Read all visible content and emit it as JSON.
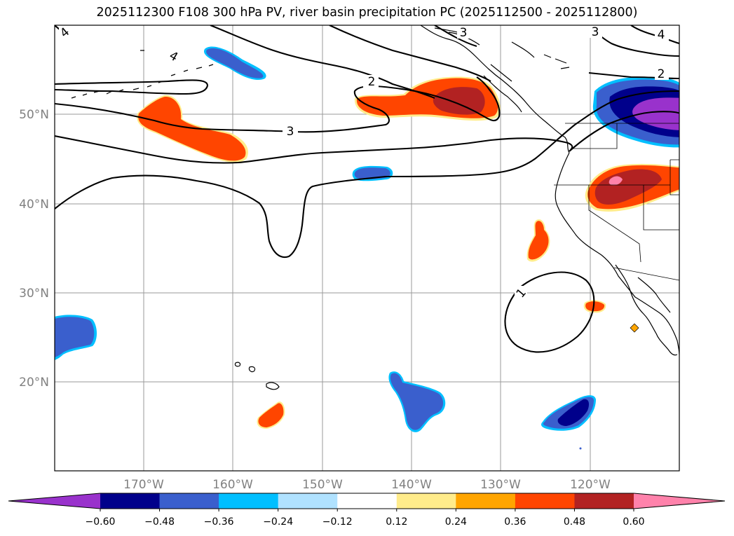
{
  "title": "2025112300 F108 300 hPa PV, river basin precipitation PC (2025112500 - 2025112800)",
  "map": {
    "projection": "PlateCarree",
    "lon_range": [
      -180,
      -110
    ],
    "lat_range": [
      10,
      60
    ],
    "gridlines": true,
    "lon_ticks": [
      {
        "lon": -170,
        "label": "170°W"
      },
      {
        "lon": -160,
        "label": "160°W"
      },
      {
        "lon": -150,
        "label": "150°W"
      },
      {
        "lon": -140,
        "label": "140°W"
      },
      {
        "lon": -130,
        "label": "130°W"
      },
      {
        "lon": -120,
        "label": "120°W"
      }
    ],
    "lat_ticks": [
      {
        "lat": 20,
        "label": "20°N"
      },
      {
        "lat": 30,
        "label": "30°N"
      },
      {
        "lat": 40,
        "label": "40°N"
      },
      {
        "lat": 50,
        "label": "50°N"
      }
    ],
    "pv_contour_labels": [
      "1",
      "2",
      "3",
      "4"
    ]
  },
  "colorbar": {
    "levels": [
      "−0.60",
      "−0.48",
      "−0.36",
      "−0.24",
      "−0.12",
      "0.12",
      "0.24",
      "0.36",
      "0.48",
      "0.60"
    ],
    "colors": [
      "#9932cc",
      "#00008b",
      "#3a5fcd",
      "#00bfff",
      "#b0e2ff",
      "#ffffff",
      "#ffec8b",
      "#ffa500",
      "#ff4500",
      "#b22222",
      "#ff82ab"
    ],
    "extend": "both"
  }
}
